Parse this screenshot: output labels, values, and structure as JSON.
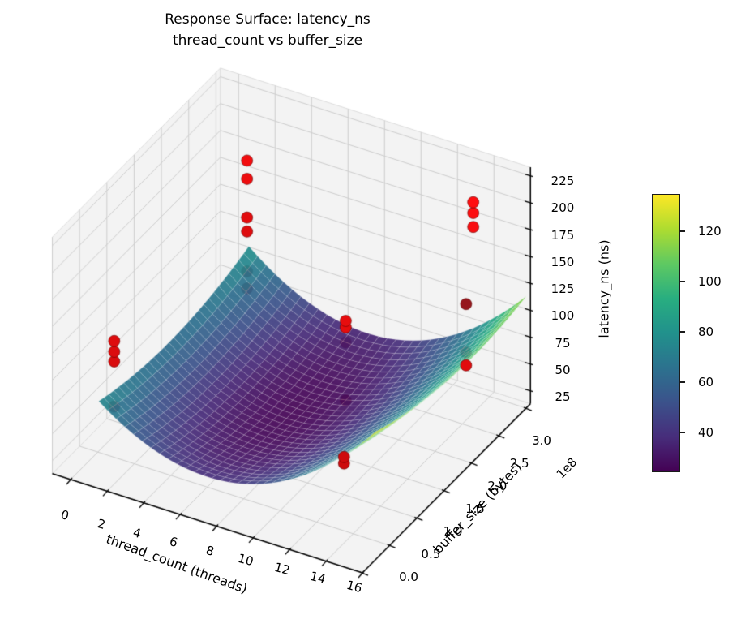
{
  "chart_data": {
    "type": "surface3d",
    "title_line1": "Response Surface: latency_ns",
    "title_line2": "thread_count vs buffer_size",
    "xlabel": "thread_count (threads)",
    "ylabel": "buffer_size (bytes)",
    "y_offset_text": "1e8",
    "zlabel": "latency_ns (ns)",
    "x_ticks": [
      "0",
      "2",
      "4",
      "6",
      "8",
      "10",
      "12",
      "14",
      "16"
    ],
    "y_ticks": [
      "0.0",
      "0.5",
      "1.0",
      "1.5",
      "2.0",
      "2.5",
      "3.0"
    ],
    "z_ticks": [
      "25",
      "50",
      "75",
      "100",
      "125",
      "150",
      "175",
      "200",
      "225"
    ],
    "x_range_threads": [
      0,
      16
    ],
    "y_range_1e8_bytes": [
      0,
      3
    ],
    "z_range_ns": [
      13,
      233
    ],
    "grid": true,
    "colormap": {
      "name": "viridis",
      "vmin": 24,
      "vmax": 135,
      "anchors": [
        "#440154",
        "#472d7b",
        "#3b528b",
        "#2c728e",
        "#21918c",
        "#28ae80",
        "#5ec962",
        "#addc30",
        "#fde725"
      ]
    },
    "colorbar_ticks": [
      "40",
      "60",
      "80",
      "100",
      "120"
    ],
    "surface_fit": {
      "form": "z = b0 + b1*t + b2*t^2 + b3*B + b4*B^2 + b5*t*B  (t=threads, B=buffer in 1e8 bytes)",
      "b0": 93,
      "b1": -14.43,
      "b2": 1.078,
      "b3": -20.3,
      "b4": 6.76,
      "b5": -0.4375,
      "t_grid": [
        0.8,
        16
      ],
      "B_grid_1e8": [
        0.25,
        3.0
      ],
      "z_min": 24,
      "z_max": 132
    },
    "scatter": {
      "color": "#ff0000",
      "points": [
        {
          "t": 1,
          "B": 2.9,
          "z": 167,
          "occluded": false
        },
        {
          "t": 1,
          "B": 2.9,
          "z": 150,
          "occluded": false
        },
        {
          "t": 1,
          "B": 2.9,
          "z": 114,
          "occluded": false
        },
        {
          "t": 1,
          "B": 2.9,
          "z": 101,
          "occluded": false
        },
        {
          "t": 1,
          "B": 2.9,
          "z": 64,
          "occluded": true
        },
        {
          "t": 1,
          "B": 2.9,
          "z": 48,
          "occluded": true
        },
        {
          "t": 14,
          "B": 2.7,
          "z": 209,
          "occluded": false
        },
        {
          "t": 14,
          "B": 2.7,
          "z": 199,
          "occluded": false
        },
        {
          "t": 14,
          "B": 2.7,
          "z": 186,
          "occluded": false
        },
        {
          "t": 0,
          "B": 0.8,
          "z": 101,
          "occluded": false
        },
        {
          "t": 0,
          "B": 0.8,
          "z": 91,
          "occluded": false
        },
        {
          "t": 0,
          "B": 0.8,
          "z": 82,
          "occluded": false
        },
        {
          "t": 0,
          "B": 0.8,
          "z": 40,
          "occluded": true
        },
        {
          "t": 10,
          "B": 1.7,
          "z": 128,
          "occluded": false
        },
        {
          "t": 10,
          "B": 1.7,
          "z": 122,
          "occluded": false
        },
        {
          "t": 10,
          "B": 1.7,
          "z": 108,
          "occluded": true
        },
        {
          "t": 10,
          "B": 1.7,
          "z": 54,
          "occluded": true
        },
        {
          "t": 16,
          "B": 1.9,
          "z": 166,
          "occluded": true
        },
        {
          "t": 16,
          "B": 1.9,
          "z": 121,
          "occluded": true
        },
        {
          "t": 16,
          "B": 1.9,
          "z": 109,
          "occluded": false
        },
        {
          "t": 12,
          "B": 1.0,
          "z": 48,
          "occluded": false
        },
        {
          "t": 12,
          "B": 1.0,
          "z": 42,
          "occluded": false
        }
      ]
    }
  }
}
